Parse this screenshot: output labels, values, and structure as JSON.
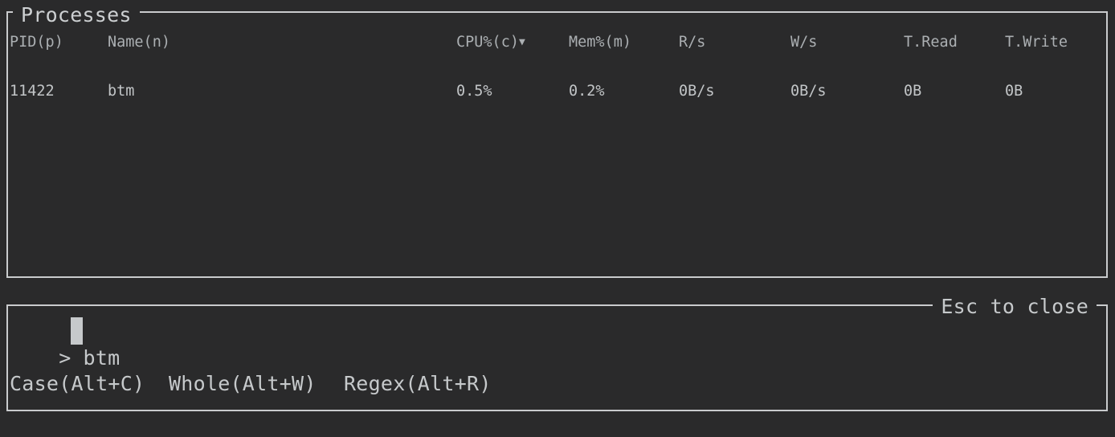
{
  "colors": {
    "background": "#2a2a2b",
    "border": "#c9cbcd",
    "header_text": "#abafb2",
    "row_text": "#c2c5c7",
    "chrome_text": "#c6c9cb",
    "cursor": "#c6c9cb"
  },
  "processes_panel": {
    "title": "Processes",
    "columns": [
      "PID(p)",
      "Name(n)",
      "CPU%(c)",
      "Mem%(m)",
      "R/s",
      "W/s",
      "T.Read",
      "T.Write"
    ],
    "sort_indicator": "▼",
    "sort_column": "CPU%(c)",
    "sort_direction": "descending",
    "rows": [
      {
        "pid": "11422",
        "name": "btm",
        "cpu": "0.5%",
        "mem": "0.2%",
        "read_per_sec": "0B/s",
        "write_per_sec": "0B/s",
        "total_read": "0B",
        "total_write": "0B"
      }
    ]
  },
  "search_panel": {
    "close_hint": "Esc to close",
    "prompt": ">",
    "query": "btm",
    "options": [
      {
        "label": "Case(Alt+C)"
      },
      {
        "label": "Whole(Alt+W)"
      },
      {
        "label": "Regex(Alt+R)"
      }
    ]
  }
}
